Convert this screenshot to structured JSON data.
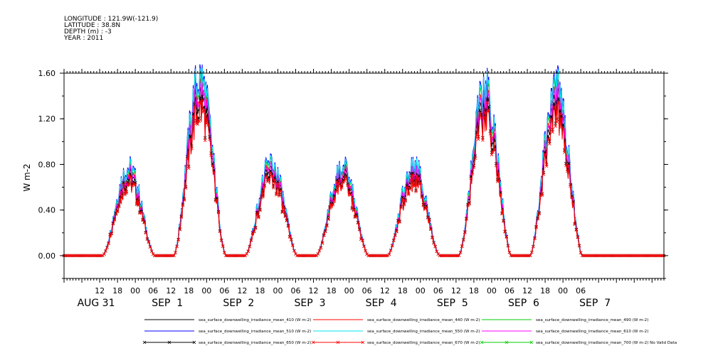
{
  "header": {
    "longitude": "LONGITUDE : 121.9W(-121.9)",
    "latitude": "LATITUDE : 38.8N",
    "depth": "DEPTH (m) : -3",
    "year": "YEAR : 2011"
  },
  "chart_data": {
    "type": "line",
    "ylabel": "W m-2",
    "ylim": [
      -0.2,
      1.6
    ],
    "yticks": [
      "1.60",
      "1.20",
      "0.80",
      "0.40",
      "0.00"
    ],
    "ytick_values": [
      1.6,
      1.2,
      0.8,
      0.4,
      0.0
    ],
    "xlim_hours": [
      0,
      202
    ],
    "x_hour_ticks": [
      "12",
      "18",
      "00",
      "06",
      "12",
      "18",
      "00",
      "06",
      "12",
      "18",
      "00",
      "06",
      "12",
      "18",
      "00",
      "06",
      "12",
      "18",
      "00",
      "06",
      "12",
      "18",
      "00",
      "06",
      "12",
      "18",
      "00",
      "06"
    ],
    "x_hour_tick_hours": [
      12,
      18,
      24,
      30,
      36,
      42,
      48,
      54,
      60,
      66,
      72,
      78,
      84,
      90,
      96,
      102,
      108,
      114,
      120,
      126,
      132,
      138,
      144,
      150,
      156,
      162,
      168,
      174
    ],
    "x_day_labels": [
      "AUG 31",
      "SEP  1",
      "SEP  2",
      "SEP  3",
      "SEP  4",
      "SEP  5",
      "SEP  6",
      "SEP  7"
    ],
    "x_day_label_hours": [
      6,
      30,
      54,
      78,
      102,
      126,
      150,
      174
    ],
    "days": [
      {
        "rise": 13,
        "set": 30.5,
        "peak": 0.72
      },
      {
        "rise": 37,
        "set": 54.5,
        "peak": 1.45
      },
      {
        "rise": 61,
        "set": 78.5,
        "peak": 0.75
      },
      {
        "rise": 85,
        "set": 102.5,
        "peak": 0.72
      },
      {
        "rise": 109,
        "set": 126.5,
        "peak": 0.74
      },
      {
        "rise": 133,
        "set": 150.5,
        "peak": 1.35
      },
      {
        "rise": 157,
        "set": 174.5,
        "peak": 1.38
      }
    ],
    "series": [
      {
        "name": "sea_surface_downwelling_irradiance_mean_410 (W m-2)",
        "color": "#000000",
        "scale": 0.95,
        "marker": "none"
      },
      {
        "name": "sea_surface_downwelling_irradiance_mean_440 (W m-2)",
        "color": "#ff0000",
        "scale": 1.0,
        "marker": "none"
      },
      {
        "name": "sea_surface_downwelling_irradiance_mean_490 (W m-2)",
        "color": "#00cc00",
        "scale": 1.04,
        "marker": "none"
      },
      {
        "name": "sea_surface_downwelling_irradiance_mean_510 (W m-2)",
        "color": "#0000ff",
        "scale": 1.08,
        "marker": "none"
      },
      {
        "name": "sea_surface_downwelling_irradiance_mean_550 (W m-2)",
        "color": "#00e5ee",
        "scale": 1.06,
        "marker": "none"
      },
      {
        "name": "sea_surface_downwelling_irradiance_mean_610 (W m-2)",
        "color": "#ff00ff",
        "scale": 0.98,
        "marker": "none"
      },
      {
        "name": "sea_surface_downwelling_irradiance_mean_650 (W m-2)",
        "color": "#000000",
        "scale": 0.9,
        "marker": "x"
      },
      {
        "name": "sea_surface_downwelling_irradiance_mean_670 (W m-2)",
        "color": "#ff0000",
        "scale": 0.88,
        "marker": "x"
      },
      {
        "name": "sea_surface_downwelling_irradiance_mean_700 (W m-2) No Valid Data",
        "color": "#00cc00",
        "scale": 0,
        "marker": "x",
        "no_data": true
      }
    ]
  }
}
